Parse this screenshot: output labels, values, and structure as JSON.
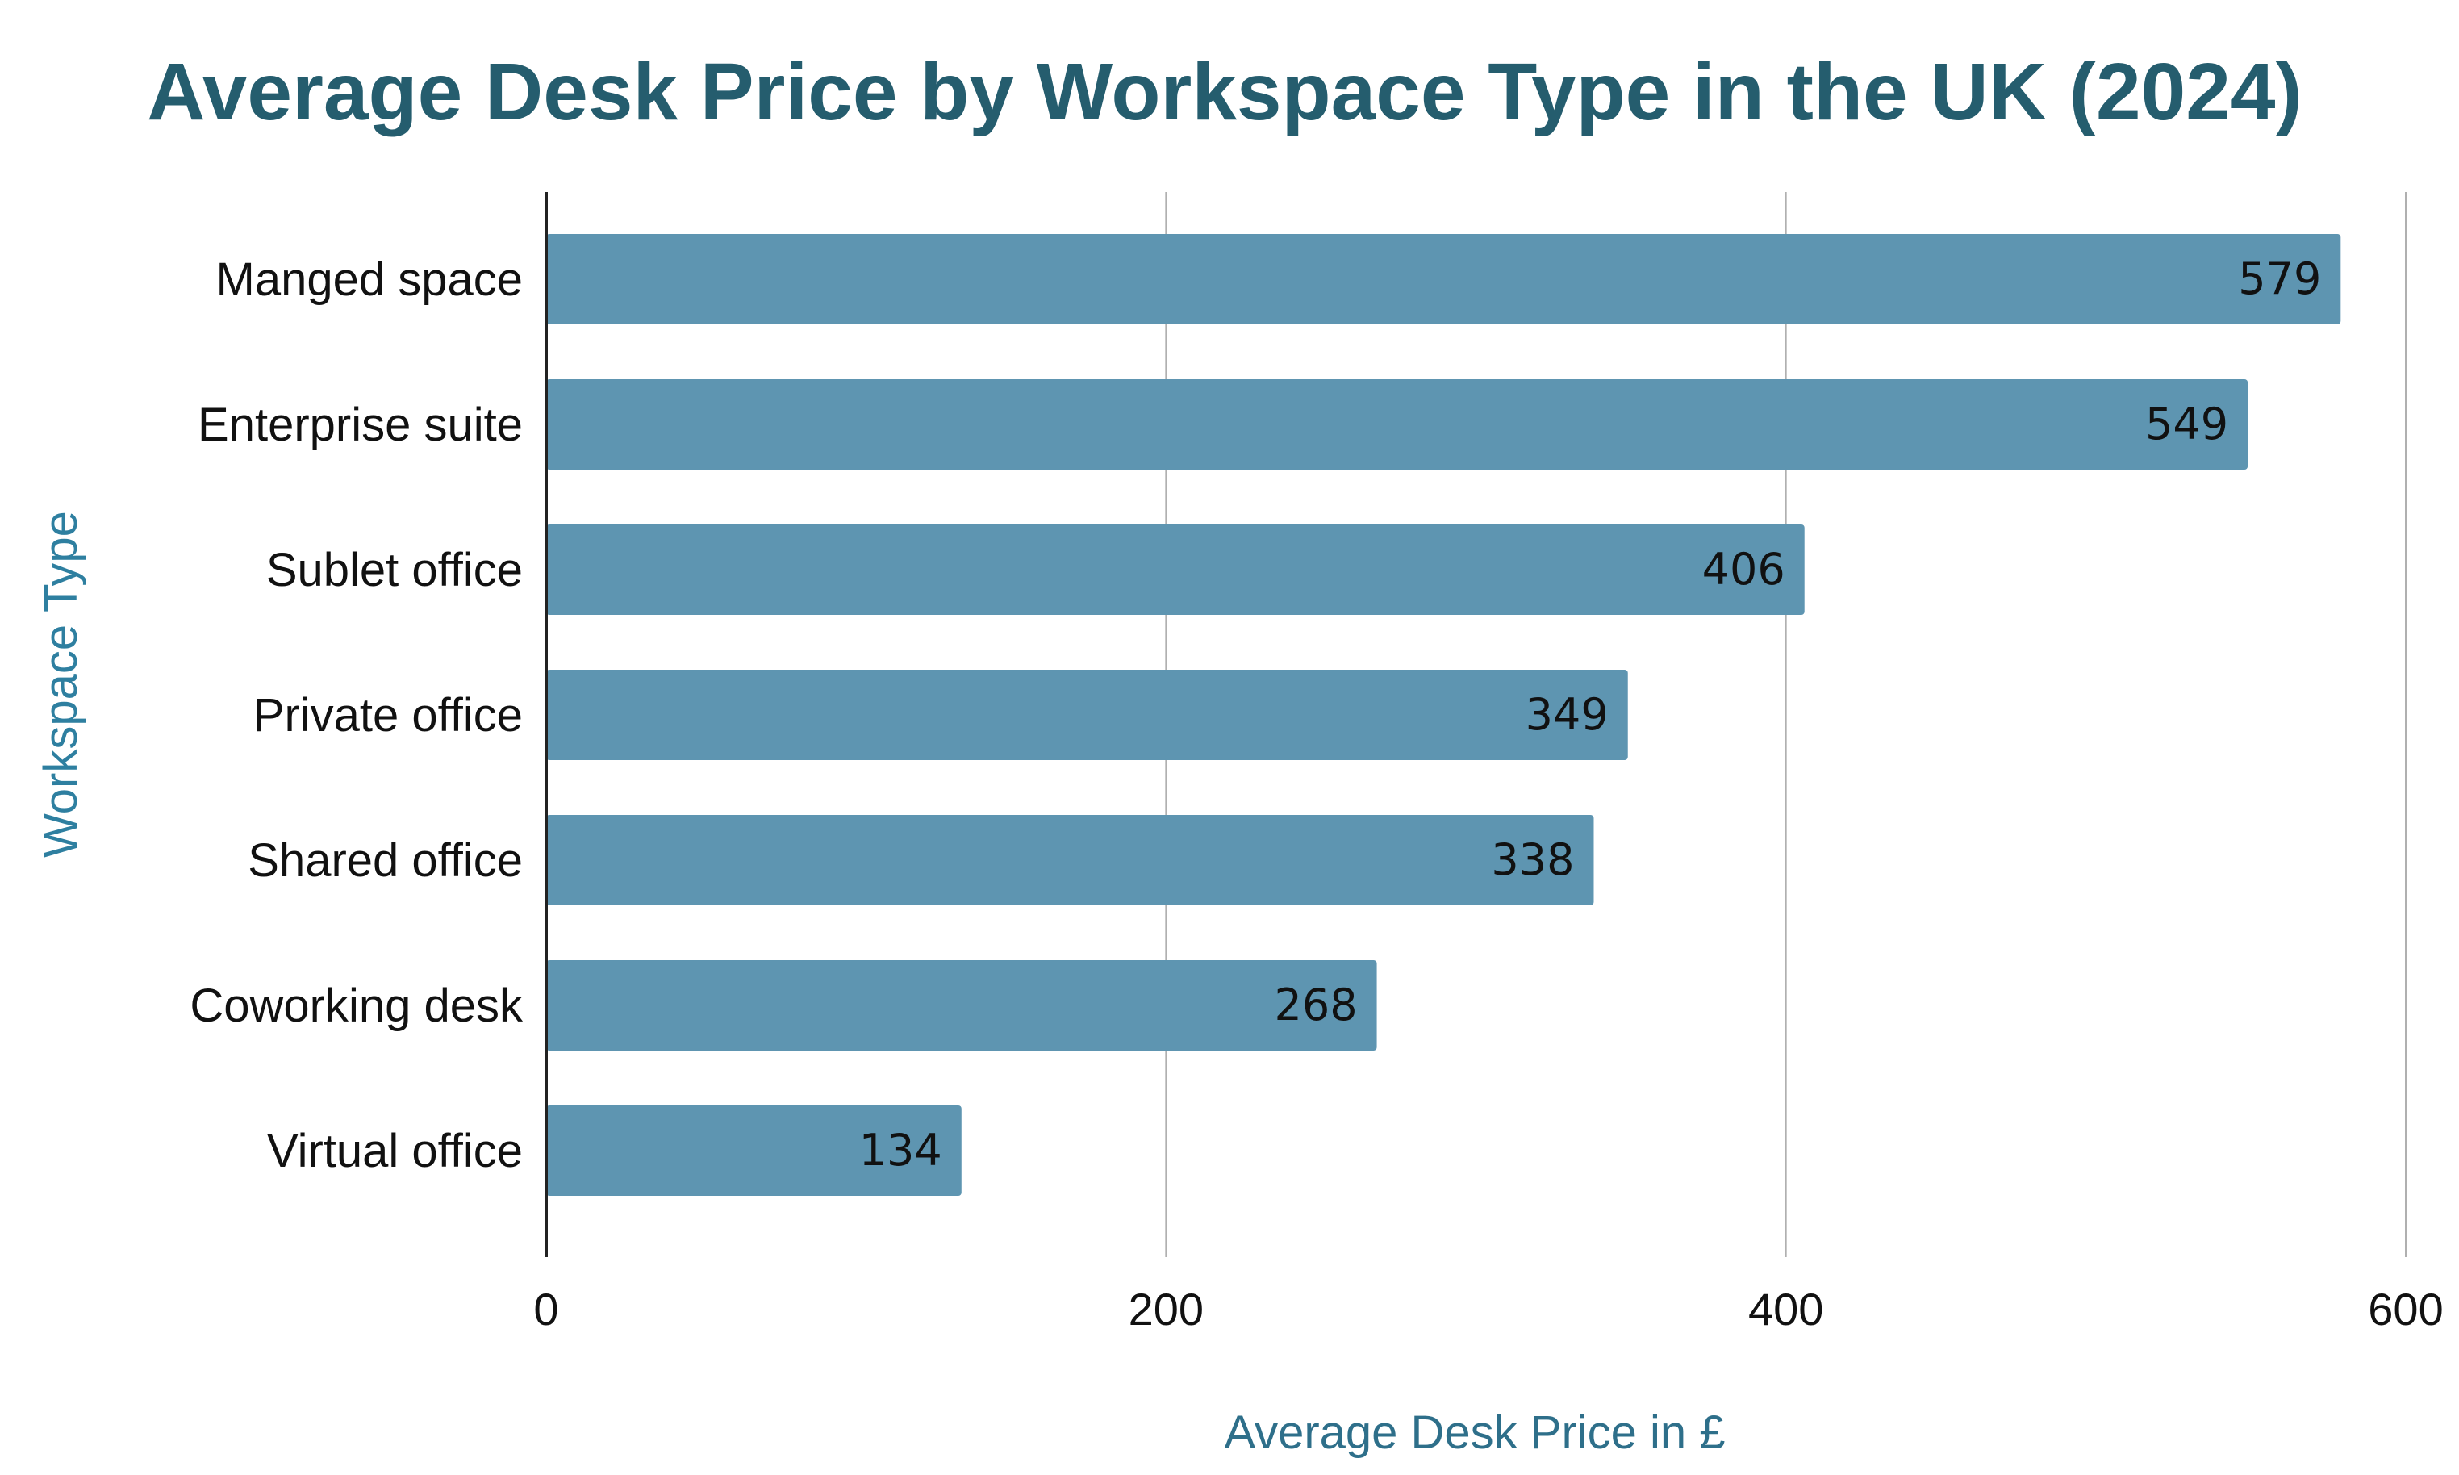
{
  "chart_data": {
    "type": "bar",
    "orientation": "horizontal",
    "title": "Average Desk Price by Workspace Type in the UK (2024)",
    "xlabel": "Average Desk Price in £",
    "ylabel": "Workspace Type",
    "categories": [
      "Manged space",
      "Enterprise suite",
      "Sublet office",
      "Private office",
      "Shared office",
      "Coworking desk",
      "Virtual office"
    ],
    "values": [
      579,
      549,
      406,
      349,
      338,
      268,
      134
    ],
    "xlim": [
      0,
      600
    ],
    "xticks": [
      0,
      200,
      400,
      600
    ],
    "grid": "vertical",
    "legend": "none",
    "colors": {
      "bar": "#5e95b1",
      "title": "#255d6e",
      "axis_title": "#2e6f8a",
      "ylabel": "#2e7fa0",
      "text": "#111111",
      "grid": "#b0b0b0",
      "axis": "#222222"
    }
  }
}
